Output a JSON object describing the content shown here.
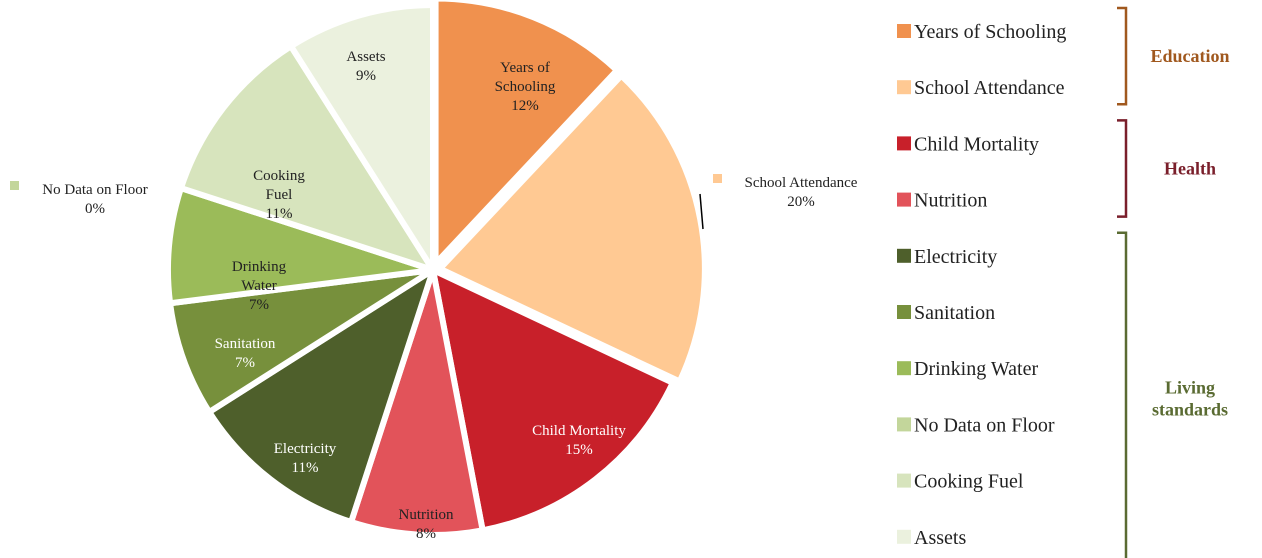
{
  "chart_data": {
    "type": "pie",
    "slices": [
      {
        "label": "Years of Schooling",
        "value": 12,
        "display": "12%",
        "color": "#F0914E",
        "label_color": "#222222",
        "exploded": true
      },
      {
        "label": "School Attendance",
        "value": 20,
        "display": "20%",
        "color": "#FFC993",
        "label_color": "#222222",
        "exploded": true
      },
      {
        "label": "Child Mortality",
        "value": 15,
        "display": "15%",
        "color": "#C8202A",
        "label_color": "#ffffff",
        "exploded": false
      },
      {
        "label": "Nutrition",
        "value": 8,
        "display": "8%",
        "color": "#E2535A",
        "label_color": "#222222",
        "exploded": false
      },
      {
        "label": "Electricity",
        "value": 11,
        "display": "11%",
        "color": "#4E5F2B",
        "label_color": "#ffffff",
        "exploded": false
      },
      {
        "label": "Sanitation",
        "value": 7,
        "display": "7%",
        "color": "#77903C",
        "label_color": "#ffffff",
        "exploded": false
      },
      {
        "label": "Drinking Water",
        "value": 7,
        "display": "7%",
        "color": "#9BBB59",
        "label_color": "#222222",
        "exploded": false
      },
      {
        "label": "No Data on Floor",
        "value": 0,
        "display": "0%",
        "color": "#C3D69B",
        "label_color": "#222222",
        "exploded": false
      },
      {
        "label": "Cooking Fuel",
        "value": 11,
        "display": "11%",
        "color": "#D7E4BD",
        "label_color": "#222222",
        "exploded": false
      },
      {
        "label": "Assets",
        "value": 9,
        "display": "9%",
        "color": "#EBF1DE",
        "label_color": "#222222",
        "exploded": false
      }
    ],
    "legend_position": "right",
    "legend_groups": [
      {
        "name": "Education",
        "color": "#A0581E",
        "members": [
          "Years of Schooling",
          "School Attendance"
        ]
      },
      {
        "name": "Health",
        "color": "#7A1F2B",
        "members": [
          "Child Mortality",
          "Nutrition"
        ]
      },
      {
        "name": "Living standards",
        "name_lines": [
          "Living",
          "standards"
        ],
        "color": "#5A6B32",
        "members": [
          "Electricity",
          "Sanitation",
          "Drinking Water",
          "No Data on Floor",
          "Cooking Fuel",
          "Assets"
        ]
      }
    ]
  }
}
